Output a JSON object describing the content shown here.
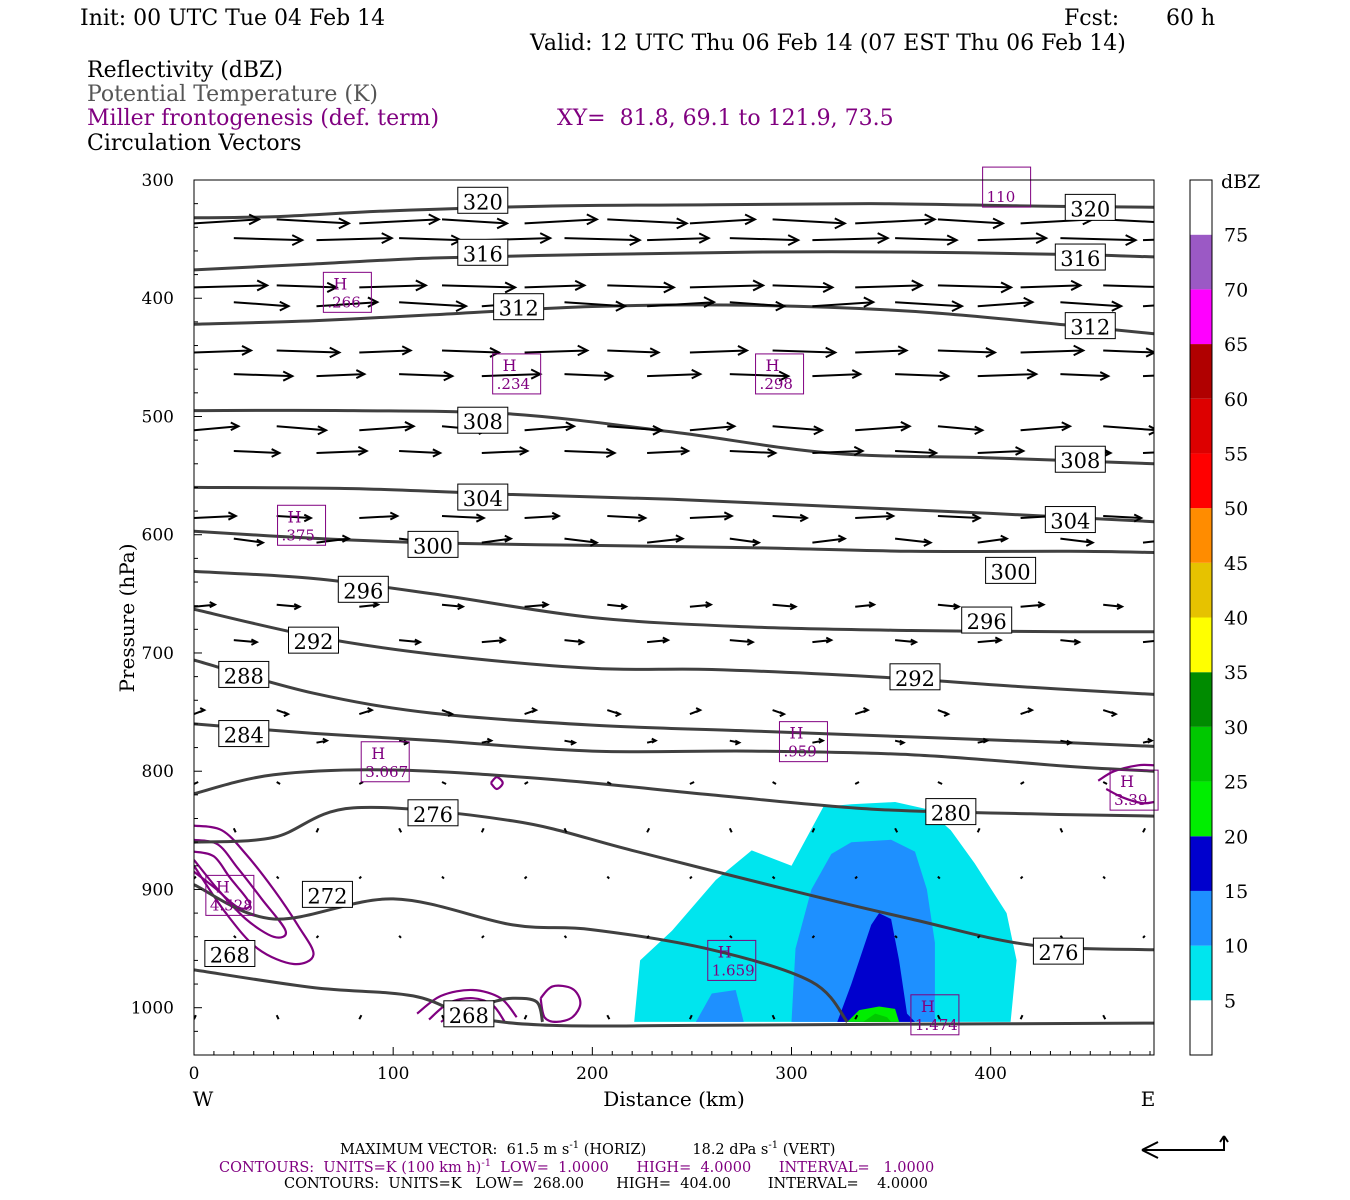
{
  "header": {
    "init": "Init: 00 UTC Tue 04 Feb 14",
    "fcst_label": "Fcst:",
    "fcst_value": "60 h",
    "valid": "Valid: 12 UTC Thu 06 Feb 14 (07 EST Thu 06 Feb 14)",
    "field1": "Reflectivity (dBZ)",
    "field2": "Potential Temperature (K)",
    "field3": "Miller frontogenesis (def. term)",
    "xy": "XY=  81.8, 69.1 to 121.9, 73.5",
    "field4": "Circulation Vectors"
  },
  "colors": {
    "theta": "#404040",
    "fronto": "#800080",
    "vectors": "#000000"
  },
  "chart_data": {
    "type": "cross-section",
    "xlabel": "Distance (km)",
    "ylabel": "Pressure (hPa)",
    "xlim": [
      0,
      482
    ],
    "ylim": [
      1040,
      300
    ],
    "x_ticks": [
      0,
      100,
      200,
      300,
      400
    ],
    "y_ticks": [
      300,
      400,
      500,
      600,
      700,
      800,
      900,
      1000
    ],
    "x_end_labels": {
      "left": "W",
      "right": "E"
    },
    "theta_contours": [
      {
        "value": 320,
        "label_x": 145,
        "label_p": 318,
        "points": [
          [
            0,
            332
          ],
          [
            40,
            331
          ],
          [
            100,
            326
          ],
          [
            180,
            322
          ],
          [
            260,
            321
          ],
          [
            340,
            320
          ],
          [
            420,
            322
          ],
          [
            482,
            323
          ]
        ]
      },
      {
        "value": 316,
        "label_x": 145,
        "label_p": 362,
        "points": [
          [
            0,
            376
          ],
          [
            60,
            371
          ],
          [
            120,
            366
          ],
          [
            200,
            363
          ],
          [
            280,
            361
          ],
          [
            360,
            361
          ],
          [
            440,
            363
          ],
          [
            482,
            365
          ]
        ]
      },
      {
        "value": 312,
        "label_x": 163,
        "label_p": 408,
        "points": [
          [
            0,
            422
          ],
          [
            60,
            419
          ],
          [
            120,
            414
          ],
          [
            200,
            407
          ],
          [
            280,
            406
          ],
          [
            360,
            411
          ],
          [
            440,
            423
          ],
          [
            482,
            430
          ]
        ]
      },
      {
        "value": 308,
        "label_x": 145,
        "label_p": 504,
        "points": [
          [
            0,
            495
          ],
          [
            80,
            495
          ],
          [
            160,
            498
          ],
          [
            240,
            513
          ],
          [
            320,
            531
          ],
          [
            400,
            535
          ],
          [
            482,
            540
          ]
        ]
      },
      {
        "value": 304,
        "label_x": 145,
        "label_p": 569,
        "points": [
          [
            0,
            560
          ],
          [
            80,
            561
          ],
          [
            160,
            566
          ],
          [
            240,
            570
          ],
          [
            320,
            576
          ],
          [
            400,
            582
          ],
          [
            482,
            589
          ]
        ]
      },
      {
        "value": 300,
        "label_x": 120,
        "label_p": 609,
        "points": [
          [
            0,
            597
          ],
          [
            60,
            603
          ],
          [
            120,
            607
          ],
          [
            200,
            609
          ],
          [
            280,
            611
          ],
          [
            360,
            614
          ],
          [
            440,
            614
          ],
          [
            482,
            615
          ]
        ]
      },
      {
        "value": 296,
        "label_x": 85,
        "label_p": 647,
        "points": [
          [
            0,
            631
          ],
          [
            60,
            637
          ],
          [
            120,
            650
          ],
          [
            200,
            670
          ],
          [
            280,
            678
          ],
          [
            360,
            681
          ],
          [
            440,
            682
          ],
          [
            482,
            682
          ]
        ]
      },
      {
        "value": 292,
        "label_x": 60,
        "label_p": 690,
        "points": [
          [
            0,
            663
          ],
          [
            60,
            686
          ],
          [
            120,
            701
          ],
          [
            200,
            713
          ],
          [
            260,
            714
          ],
          [
            340,
            720
          ],
          [
            420,
            729
          ],
          [
            482,
            735
          ]
        ]
      },
      {
        "value": 288,
        "label_x": 25,
        "label_p": 719,
        "points": [
          [
            0,
            706
          ],
          [
            60,
            734
          ],
          [
            120,
            751
          ],
          [
            200,
            761
          ],
          [
            280,
            766
          ],
          [
            360,
            771
          ],
          [
            440,
            776
          ],
          [
            482,
            779
          ]
        ]
      },
      {
        "value": 284,
        "label_x": 25,
        "label_p": 769,
        "points": [
          [
            0,
            760
          ],
          [
            60,
            768
          ],
          [
            120,
            774
          ],
          [
            200,
            783
          ],
          [
            280,
            783
          ],
          [
            360,
            786
          ],
          [
            440,
            796
          ],
          [
            482,
            800
          ]
        ]
      },
      {
        "value": 280,
        "label_x": 380,
        "label_p": 835,
        "points": [
          [
            0,
            819
          ],
          [
            40,
            803
          ],
          [
            100,
            799
          ],
          [
            180,
            807
          ],
          [
            260,
            820
          ],
          [
            340,
            832
          ],
          [
            420,
            836
          ],
          [
            482,
            838
          ]
        ]
      },
      {
        "value": 276,
        "label_x": 120,
        "label_p": 836,
        "points": [
          [
            0,
            860
          ],
          [
            40,
            856
          ],
          [
            80,
            831
          ],
          [
            160,
            842
          ],
          [
            220,
            867
          ],
          [
            300,
            901
          ],
          [
            360,
            925
          ],
          [
            420,
            947
          ],
          [
            482,
            951
          ]
        ]
      },
      {
        "value": 272,
        "label_x": 67,
        "label_p": 905,
        "points": [
          [
            0,
            896
          ],
          [
            40,
            925
          ],
          [
            100,
            908
          ],
          [
            160,
            930
          ],
          [
            200,
            934
          ],
          [
            260,
            951
          ],
          [
            310,
            978
          ],
          [
            328,
            1012
          ]
        ]
      },
      {
        "value": 268,
        "label_x": 18,
        "label_p": 955,
        "points": [
          [
            0,
            968
          ],
          [
            60,
            983
          ],
          [
            110,
            990
          ],
          [
            140,
            1008
          ],
          [
            180,
            1015
          ],
          [
            250,
            1015
          ],
          [
            350,
            1014
          ],
          [
            482,
            1013
          ]
        ]
      }
    ],
    "theta_labels_extra": [
      {
        "value": 320,
        "x": 450,
        "p": 324
      },
      {
        "value": 316,
        "x": 445,
        "p": 366
      },
      {
        "value": 312,
        "x": 450,
        "p": 424
      },
      {
        "value": 308,
        "x": 445,
        "p": 537
      },
      {
        "value": 304,
        "x": 440,
        "p": 588
      },
      {
        "value": 300,
        "x": 410,
        "p": 631
      },
      {
        "value": 296,
        "x": 398,
        "p": 673
      },
      {
        "value": 292,
        "x": 362,
        "p": 721
      },
      {
        "value": 276,
        "x": 434,
        "p": 953
      },
      {
        "value": 268,
        "x": 138,
        "p": 1006
      }
    ],
    "reflectivity_scale": {
      "unit": "dBZ",
      "levels": [
        5,
        10,
        15,
        20,
        25,
        30,
        35,
        40,
        45,
        50,
        55,
        60,
        65,
        70,
        75
      ],
      "colors": [
        "#ffffff",
        "#00e5ee",
        "#1e90ff",
        "#0000cd",
        "#00ee00",
        "#00c800",
        "#008b00",
        "#ffff00",
        "#e6c200",
        "#ff8c00",
        "#ff0000",
        "#dd0000",
        "#b00000",
        "#ff00ff",
        "#9b59c5",
        "#ffffff"
      ]
    },
    "reflectivity_regions": [
      {
        "dbz": 5,
        "points": [
          [
            221,
            1012
          ],
          [
            224,
            960
          ],
          [
            240,
            935
          ],
          [
            262,
            892
          ],
          [
            280,
            867
          ],
          [
            300,
            880
          ],
          [
            316,
            830
          ],
          [
            330,
            828
          ],
          [
            352,
            826
          ],
          [
            368,
            832
          ],
          [
            380,
            850
          ],
          [
            392,
            878
          ],
          [
            408,
            920
          ],
          [
            413,
            960
          ],
          [
            410,
            1012
          ]
        ]
      },
      {
        "dbz": 10,
        "points": [
          [
            252,
            1012
          ],
          [
            260,
            988
          ],
          [
            272,
            985
          ],
          [
            276,
            1012
          ]
        ]
      },
      {
        "dbz": 10,
        "points": [
          [
            300,
            1012
          ],
          [
            302,
            950
          ],
          [
            310,
            900
          ],
          [
            320,
            870
          ],
          [
            330,
            860
          ],
          [
            350,
            858
          ],
          [
            362,
            868
          ],
          [
            368,
            900
          ],
          [
            372,
            945
          ],
          [
            372,
            1012
          ]
        ]
      },
      {
        "dbz": 15,
        "points": [
          [
            323,
            1012
          ],
          [
            330,
            980
          ],
          [
            336,
            950
          ],
          [
            340,
            930
          ],
          [
            344,
            920
          ],
          [
            350,
            925
          ],
          [
            354,
            960
          ],
          [
            358,
            1005
          ],
          [
            362,
            1012
          ]
        ]
      },
      {
        "dbz": 20,
        "points": [
          [
            328,
            1012
          ],
          [
            334,
            1002
          ],
          [
            344,
            999
          ],
          [
            352,
            1001
          ],
          [
            354,
            1012
          ]
        ]
      },
      {
        "dbz": 25,
        "points": [
          [
            336,
            1012
          ],
          [
            342,
            1005
          ],
          [
            348,
            1008
          ],
          [
            350,
            1012
          ]
        ]
      }
    ],
    "frontogenesis_maxima": [
      {
        "label": "H",
        "value": ".266",
        "x": 77,
        "p": 395
      },
      {
        "label": "H",
        "value": ".234",
        "x": 162,
        "p": 464
      },
      {
        "label": "H",
        "value": ".298",
        "x": 294,
        "p": 464
      },
      {
        "label": "H",
        "value": ".375",
        "x": 54,
        "p": 592
      },
      {
        "label": "H",
        "value": "3.067",
        "x": 96,
        "p": 792
      },
      {
        "label": "H",
        "value": ".959",
        "x": 306,
        "p": 775
      },
      {
        "label": "H",
        "value": "3.39",
        "x": 472,
        "p": 816
      },
      {
        "label": "H",
        "value": "4.528",
        "x": 18,
        "p": 905
      },
      {
        "label": "H",
        "value": "1.659",
        "x": 270,
        "p": 960
      },
      {
        "label": "H",
        "value": "1.474",
        "x": 372,
        "p": 1006
      },
      {
        "label": "",
        "value": "110",
        "x": 408,
        "p": 306
      }
    ],
    "vector_rows": [
      {
        "p": 335,
        "dx": 38
      },
      {
        "p": 350,
        "dx": 36
      },
      {
        "p": 390,
        "dx": 35
      },
      {
        "p": 405,
        "dx": 32
      },
      {
        "p": 445,
        "dx": 30
      },
      {
        "p": 465,
        "dx": 28
      },
      {
        "p": 510,
        "dx": 26
      },
      {
        "p": 530,
        "dx": 24
      },
      {
        "p": 585,
        "dx": 20
      },
      {
        "p": 605,
        "dx": 17
      },
      {
        "p": 660,
        "dx": 11
      },
      {
        "p": 690,
        "dx": 11
      },
      {
        "p": 750,
        "dx": 6
      },
      {
        "p": 775,
        "dx": 5
      },
      {
        "p": 810,
        "dx": 2
      },
      {
        "p": 850,
        "dx": 1
      },
      {
        "p": 890,
        "dx": 1
      },
      {
        "p": 940,
        "dx": 1
      },
      {
        "p": 1008,
        "dx": 1
      }
    ],
    "vector_legend": "",
    "footer": {
      "max_vector_label": "MAXIMUM VECTOR:",
      "max_vector_horiz_value": "61.5",
      "max_vector_horiz_unit_base": "m s",
      "max_vector_horiz_unit_exp": "-1",
      "max_vector_horiz_tag": "(HORIZ)",
      "max_vector_vert_value": "18.2",
      "max_vector_vert_unit_base": "dPa s",
      "max_vector_vert_unit_exp": "-1",
      "max_vector_vert_tag": "(VERT)",
      "contours1_units_base": "CONTOURS:  UNITS=K (100 km h)",
      "contours1_units_exp": "-1",
      "contours1_rest": "  LOW=  1.0000      HIGH=  4.0000      INTERVAL=   1.0000",
      "contours2": "CONTOURS:  UNITS=K   LOW=  268.00       HIGH=  404.00        INTERVAL=    4.0000"
    }
  }
}
